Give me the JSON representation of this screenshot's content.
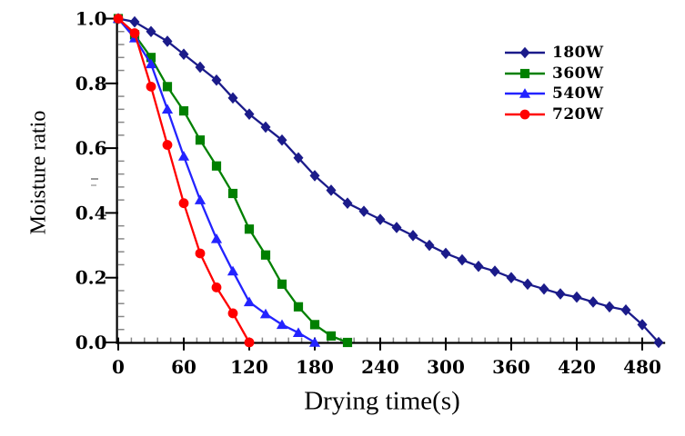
{
  "figure": {
    "background": "#ffffff"
  },
  "chart_data": {
    "type": "line",
    "title": "",
    "xlabel": "Drying time(s)",
    "ylabel": "Moisture ratio",
    "xlim": [
      0,
      501
    ],
    "ylim": [
      0.0,
      1.0
    ],
    "x_ticks": [
      0,
      60,
      120,
      180,
      240,
      300,
      360,
      420,
      480
    ],
    "x_tick_labels": [
      "0",
      "60",
      "120",
      "180",
      "240",
      "300",
      "360",
      "420",
      "480"
    ],
    "x_minor_step": 12,
    "y_ticks": [
      0.0,
      0.2,
      0.4,
      0.6,
      0.8,
      1.0
    ],
    "y_tick_labels": [
      "0.0",
      "0.2",
      "0.4",
      "0.6",
      "0.8",
      "1.0"
    ],
    "y_minor_step": 0.04,
    "grid": false,
    "legend_position": "upper-right",
    "axis_color": "#000000",
    "minor_tick_color": "#888888",
    "series": [
      {
        "name": "180W",
        "color": "#1b1b8a",
        "marker": "diamond",
        "x": [
          0,
          15,
          30,
          45,
          60,
          75,
          90,
          105,
          120,
          135,
          150,
          165,
          180,
          195,
          210,
          225,
          240,
          255,
          270,
          285,
          300,
          315,
          330,
          345,
          360,
          375,
          390,
          405,
          420,
          435,
          450,
          465,
          480,
          495
        ],
        "values": [
          1.0,
          0.99,
          0.96,
          0.93,
          0.89,
          0.85,
          0.81,
          0.755,
          0.705,
          0.665,
          0.625,
          0.57,
          0.515,
          0.47,
          0.43,
          0.405,
          0.38,
          0.355,
          0.33,
          0.3,
          0.275,
          0.255,
          0.235,
          0.22,
          0.2,
          0.18,
          0.165,
          0.15,
          0.14,
          0.125,
          0.11,
          0.1,
          0.055,
          0.0
        ]
      },
      {
        "name": "360W",
        "color": "#008000",
        "marker": "square",
        "x": [
          0,
          15,
          30,
          45,
          60,
          75,
          90,
          105,
          120,
          135,
          150,
          165,
          180,
          195,
          210
        ],
        "values": [
          1.0,
          0.95,
          0.88,
          0.79,
          0.715,
          0.625,
          0.545,
          0.46,
          0.35,
          0.27,
          0.18,
          0.11,
          0.055,
          0.02,
          0.0
        ]
      },
      {
        "name": "540W",
        "color": "#2323ff",
        "marker": "triangle",
        "x": [
          0,
          15,
          30,
          45,
          60,
          75,
          90,
          105,
          120,
          135,
          150,
          165,
          180
        ],
        "values": [
          1.0,
          0.94,
          0.86,
          0.72,
          0.575,
          0.44,
          0.32,
          0.22,
          0.125,
          0.088,
          0.055,
          0.03,
          0.0
        ]
      },
      {
        "name": "720W",
        "color": "#ff0000",
        "marker": "circle",
        "x": [
          0,
          15,
          30,
          45,
          60,
          75,
          90,
          105,
          120
        ],
        "values": [
          1.0,
          0.955,
          0.79,
          0.61,
          0.43,
          0.275,
          0.17,
          0.09,
          0.0
        ]
      }
    ]
  }
}
